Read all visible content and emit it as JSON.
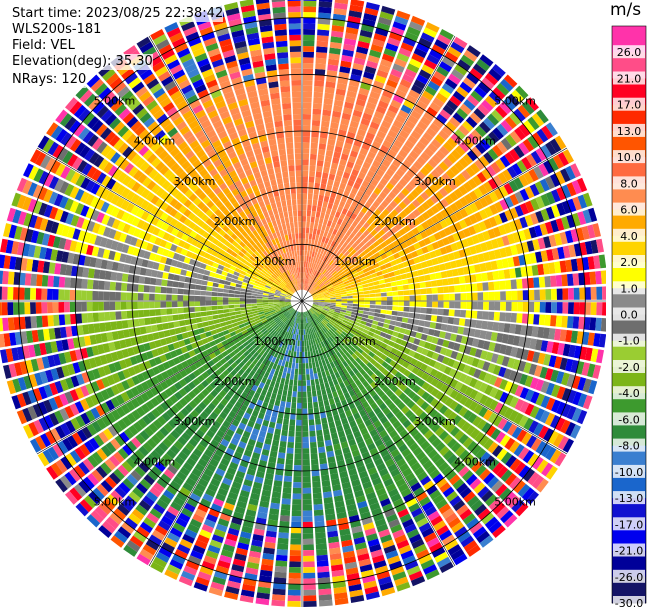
{
  "header": {
    "start_time": "Start time: 2023/08/25 22:38:42",
    "instrument": "WLS200s-181",
    "field": "Field: VEL",
    "elevation": "Elevation(deg): 35.30",
    "nrays": "NRays: 120"
  },
  "chart_data": {
    "type": "heatmap",
    "projection": "polar-ppi",
    "field": "VEL",
    "units": "m/s",
    "n_rays": 120,
    "elevation_deg": 35.3,
    "max_range_km": 5.4,
    "range_rings_km": [
      1,
      2,
      3,
      4,
      5
    ],
    "range_ring_labels": [
      "1.00km",
      "2.00km",
      "3.00km",
      "4.00km",
      "5.00km"
    ],
    "spoke_angles_deg": [
      0,
      30,
      60,
      90,
      120,
      150,
      180,
      210,
      240,
      270,
      300,
      330
    ],
    "colorbar": {
      "title": "m/s",
      "tick_labels": [
        "26.0",
        "21.0",
        "17.0",
        "13.0",
        "10.0",
        "8.0",
        "6.0",
        "4.0",
        "2.0",
        "1.0",
        "0.0",
        "-1.0",
        "-2.0",
        "-4.0",
        "-6.0",
        "-8.0",
        "-10.0",
        "-13.0",
        "-17.0",
        "-21.0",
        "-26.0",
        "-30.0"
      ],
      "bin_edges": [
        30,
        26,
        21,
        17,
        13,
        10,
        8,
        6,
        4,
        2,
        1,
        0,
        -1,
        -2,
        -4,
        -6,
        -8,
        -10,
        -13,
        -17,
        -21,
        -26,
        -30
      ],
      "bin_colors": [
        "#ff33aa",
        "#ff4d88",
        "#ff0022",
        "#ff2a00",
        "#ff5500",
        "#ff6a40",
        "#ff8c50",
        "#ffaa00",
        "#ffd400",
        "#ffff00",
        "#8a8a8a",
        "#6e6e6e",
        "#9acd32",
        "#7cb518",
        "#3d9a2e",
        "#2e8b3a",
        "#3a7fd0",
        "#1a66cc",
        "#1010d0",
        "#0000ee",
        "#000099",
        "#141466"
      ]
    }
  }
}
